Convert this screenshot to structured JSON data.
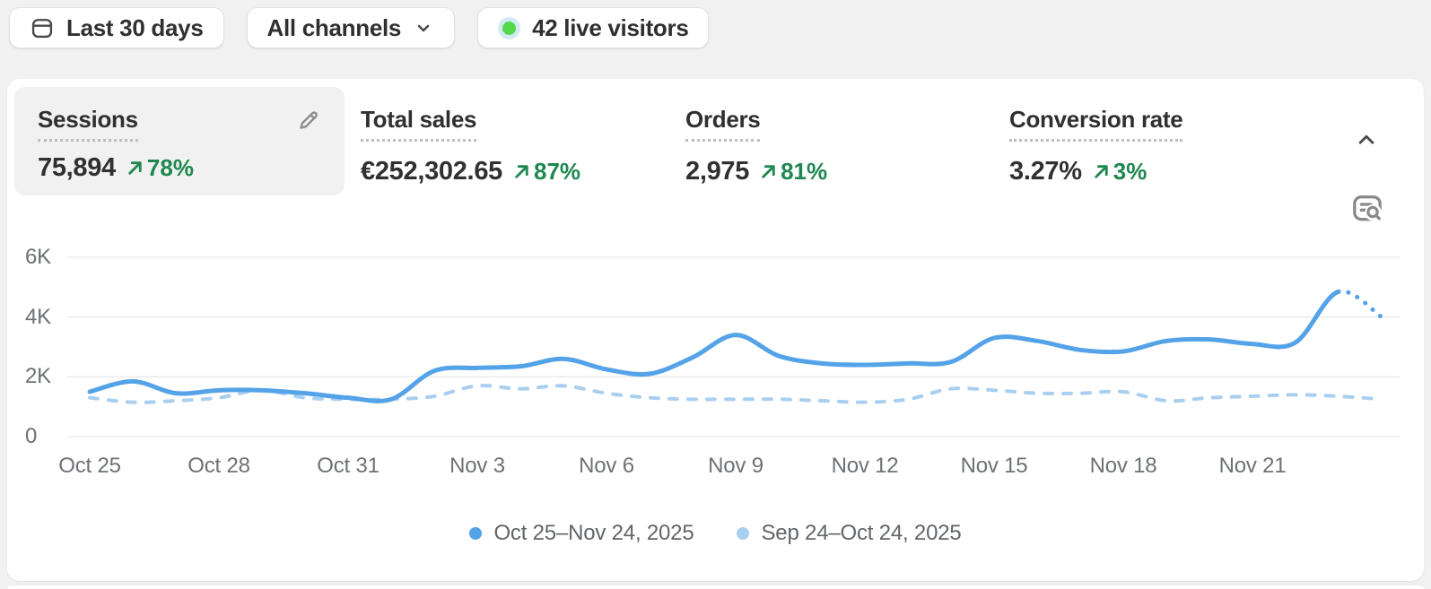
{
  "toolbar": {
    "date_range_label": "Last 30 days",
    "channels_label": "All channels",
    "live_visitors_label": "42 live visitors"
  },
  "metrics": [
    {
      "label": "Sessions",
      "value": "75,894",
      "delta": "78%"
    },
    {
      "label": "Total sales",
      "value": "€252,302.65",
      "delta": "87%"
    },
    {
      "label": "Orders",
      "value": "2,975",
      "delta": "81%"
    },
    {
      "label": "Conversion rate",
      "value": "3.27%",
      "delta": "3%"
    }
  ],
  "icons": {
    "date_range": "calendar-icon",
    "channels": "chevron-down-icon",
    "live": "live-status-dot",
    "edit": "pencil-icon",
    "collapse": "chevron-up-icon",
    "inspect": "inspect-data-icon"
  },
  "colors": {
    "current_line": "#54a2e8",
    "previous_line": "#a9cff0",
    "positive_delta": "#1f8750",
    "live_dot": "#55d84c"
  },
  "chart_data": {
    "type": "line",
    "title": "Sessions",
    "ylabel": "",
    "xlabel": "",
    "ylim": [
      0,
      6000
    ],
    "grid": true,
    "legend_position": "bottom",
    "y_ticks": [
      {
        "label": "6K",
        "value": 6000
      },
      {
        "label": "4K",
        "value": 4000
      },
      {
        "label": "2K",
        "value": 2000
      },
      {
        "label": "0",
        "value": 0
      }
    ],
    "x_ticks": [
      "Oct 25",
      "Oct 28",
      "Oct 31",
      "Nov 3",
      "Nov 6",
      "Nov 9",
      "Nov 12",
      "Nov 15",
      "Nov 18",
      "Nov 21"
    ],
    "x_days": [
      "Oct 25",
      "Oct 26",
      "Oct 27",
      "Oct 28",
      "Oct 29",
      "Oct 30",
      "Oct 31",
      "Nov 1",
      "Nov 2",
      "Nov 3",
      "Nov 4",
      "Nov 5",
      "Nov 6",
      "Nov 7",
      "Nov 8",
      "Nov 9",
      "Nov 10",
      "Nov 11",
      "Nov 12",
      "Nov 13",
      "Nov 14",
      "Nov 15",
      "Nov 16",
      "Nov 17",
      "Nov 18",
      "Nov 19",
      "Nov 20",
      "Nov 21",
      "Nov 22",
      "Nov 23",
      "Nov 24"
    ],
    "series": [
      {
        "name": "Oct 25–Nov 24, 2025",
        "color": "#54a2e8",
        "style": "solid",
        "last_segment_style": "dotted",
        "values": [
          1500,
          1850,
          1450,
          1550,
          1550,
          1450,
          1300,
          1250,
          2200,
          2300,
          2350,
          2600,
          2250,
          2100,
          2650,
          3400,
          2700,
          2450,
          2400,
          2450,
          2500,
          3300,
          3200,
          2900,
          2850,
          3200,
          3250,
          3100,
          3150,
          4850,
          4000
        ]
      },
      {
        "name": "Sep 24–Oct 24, 2025",
        "color": "#a9cff0",
        "style": "dashed",
        "values": [
          1300,
          1150,
          1200,
          1300,
          1550,
          1300,
          1250,
          1250,
          1350,
          1700,
          1600,
          1700,
          1450,
          1300,
          1250,
          1250,
          1250,
          1200,
          1150,
          1250,
          1600,
          1550,
          1450,
          1450,
          1500,
          1200,
          1300,
          1350,
          1400,
          1350,
          1250
        ]
      }
    ]
  }
}
